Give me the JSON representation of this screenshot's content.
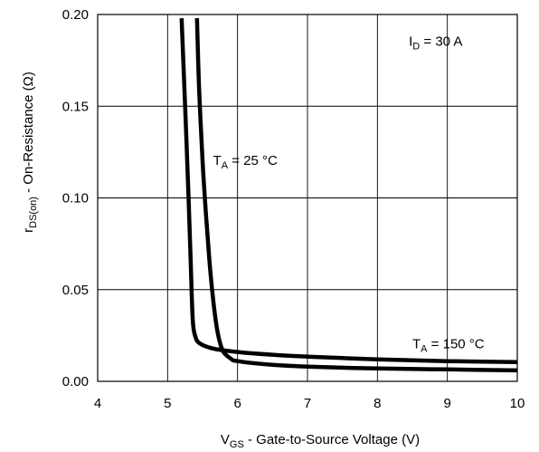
{
  "chart_data": {
    "type": "line",
    "xlabel": {
      "main": "V",
      "sub": "GS",
      "rest": " - Gate-to-Source Voltage (V)"
    },
    "ylabel": {
      "main": "r",
      "sub": "DS(on)",
      "rest": " - On-Resistance (Ω)"
    },
    "xlim": [
      4,
      10
    ],
    "ylim": [
      0,
      0.2
    ],
    "xticks": [
      "4",
      "5",
      "6",
      "7",
      "8",
      "9",
      "10"
    ],
    "yticks": [
      "0.00",
      "0.05",
      "0.10",
      "0.15",
      "0.20"
    ],
    "grid": true,
    "annotations": [
      {
        "main": "I",
        "sub": "D",
        "rest": " = 30 A",
        "x": 8.45,
        "y": 0.183
      },
      {
        "main": "T",
        "sub": "A",
        "rest": " = 25 °C",
        "x": 5.65,
        "y": 0.118
      },
      {
        "main": "T",
        "sub": "A",
        "rest": " = 150 °C",
        "x": 8.5,
        "y": 0.018
      }
    ],
    "series": [
      {
        "values_x": [
          5.2,
          5.25,
          5.3,
          5.33,
          5.36,
          5.4,
          5.45,
          5.55,
          5.7,
          6.0,
          6.5,
          7.0,
          8.0,
          9.0,
          10.0
        ],
        "values_y": [
          0.198,
          0.15,
          0.1,
          0.065,
          0.033,
          0.024,
          0.021,
          0.019,
          0.0175,
          0.016,
          0.0145,
          0.0135,
          0.012,
          0.011,
          0.0105
        ]
      },
      {
        "values_x": [
          5.42,
          5.45,
          5.5,
          5.55,
          5.6,
          5.65,
          5.7,
          5.75,
          5.8,
          5.9,
          6.0,
          6.5,
          7.0,
          8.0,
          9.0,
          10.0
        ],
        "values_y": [
          0.198,
          0.16,
          0.12,
          0.09,
          0.065,
          0.045,
          0.03,
          0.021,
          0.016,
          0.0125,
          0.011,
          0.009,
          0.008,
          0.007,
          0.0065,
          0.006
        ]
      }
    ]
  }
}
